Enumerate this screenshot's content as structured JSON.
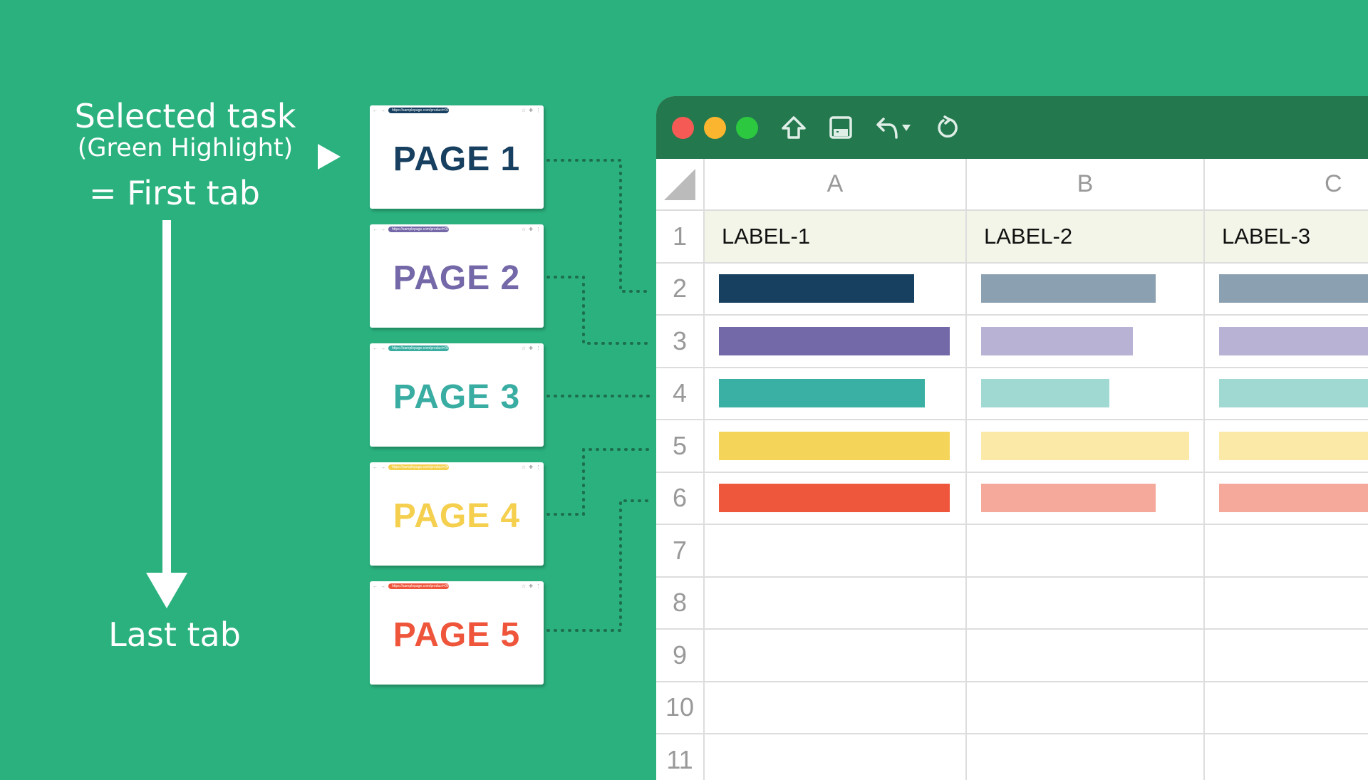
{
  "left": {
    "selected_task": "Selected task",
    "highlight_note": "(Green Highlight)",
    "first_tab": "= First tab",
    "last_tab": "Last tab"
  },
  "pages": [
    {
      "label": "PAGE 1",
      "url": "https://samplepage.com/product=01",
      "color": "#173f5f"
    },
    {
      "label": "PAGE 2",
      "url": "https://samplepage.com/product=02",
      "color": "#7468a8"
    },
    {
      "label": "PAGE 3",
      "url": "https://samplepage.com/product=03",
      "color": "#3aada3"
    },
    {
      "label": "PAGE 4",
      "url": "https://samplepage.com/product=04",
      "color": "#f5cf4e"
    },
    {
      "label": "PAGE 5",
      "url": "https://samplepage.com/product=05",
      "color": "#ee553b"
    }
  ],
  "spreadsheet": {
    "toolbar_icons": [
      "home-icon",
      "save-icon",
      "undo-icon",
      "refresh-icon"
    ],
    "columns": [
      "A",
      "B",
      "C"
    ],
    "labels": [
      "LABEL-1",
      "LABEL-2",
      "LABEL-3"
    ],
    "row_numbers": [
      "1",
      "2",
      "3",
      "4",
      "5",
      "6",
      "7",
      "8",
      "9",
      "10",
      "11"
    ]
  },
  "colors": {
    "background": "#2ab17e",
    "toolbar": "#23784e",
    "label_row": "#f2f5e8"
  }
}
